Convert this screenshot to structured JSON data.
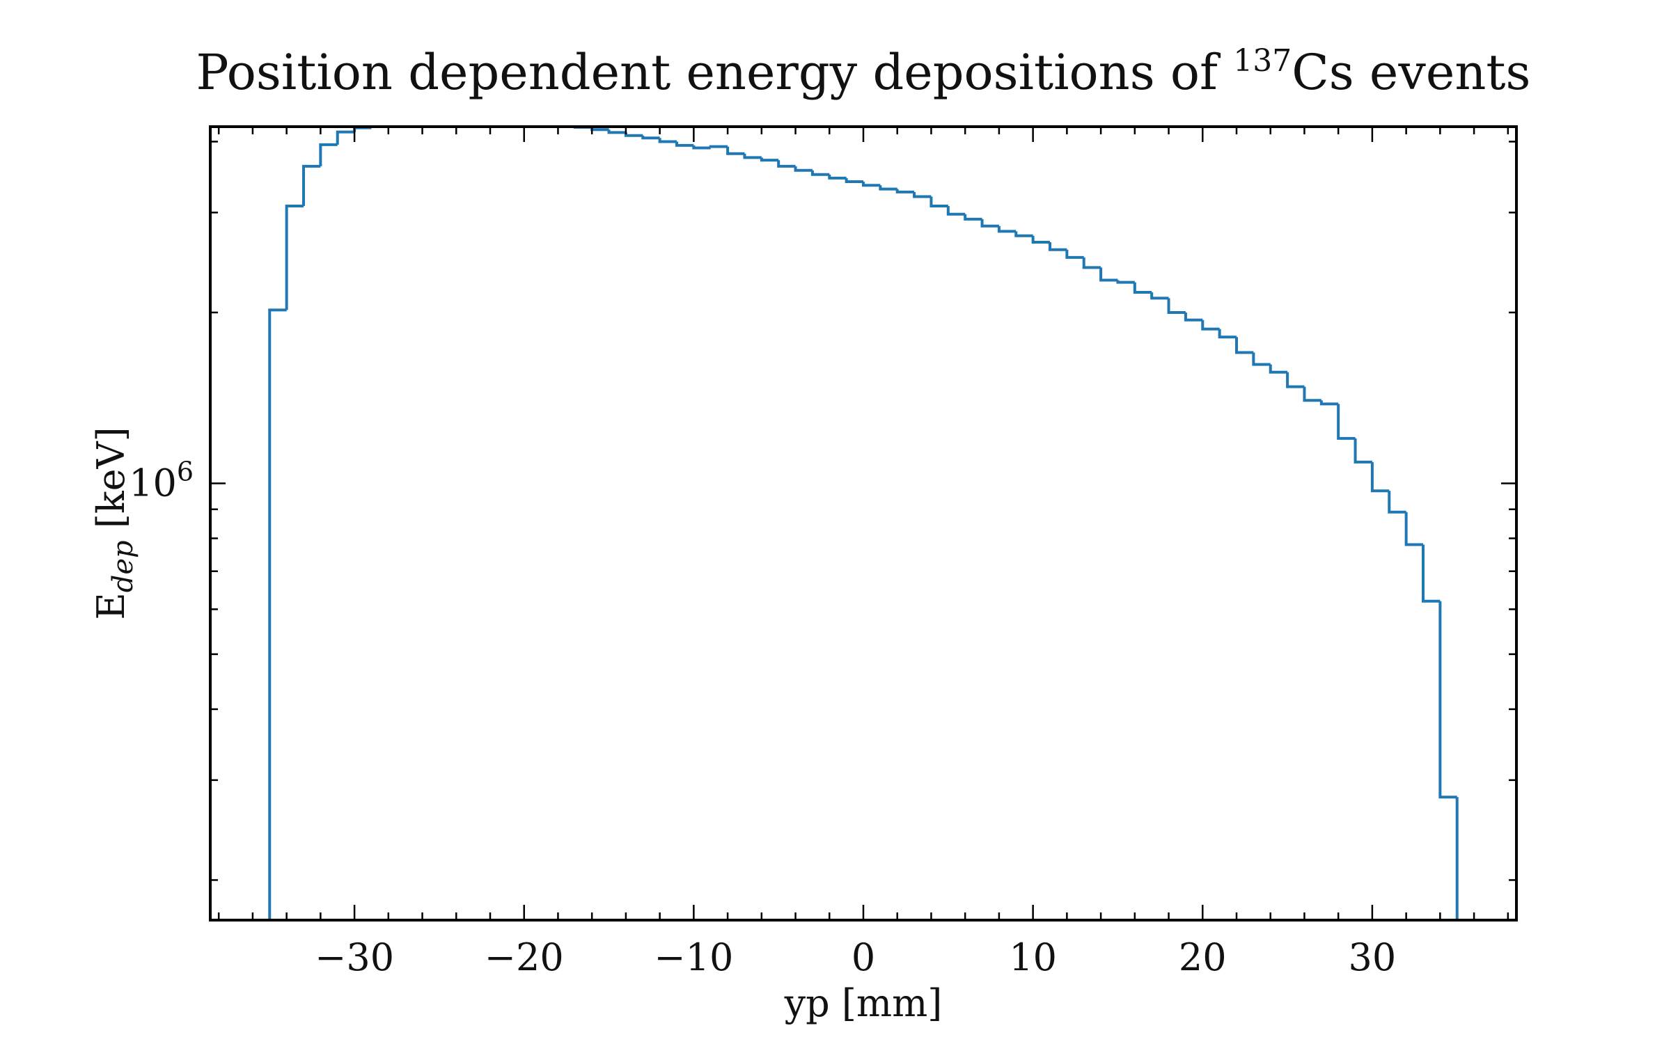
{
  "chart_data": {
    "type": "histogram",
    "title": "Position dependent energy depositions of ",
    "title_superscript": "137",
    "title_suffix": "Cs events",
    "xlabel": "yp [mm]",
    "ylabel_main": "E",
    "ylabel_sub": "dep",
    "ylabel_unit": " [keV]",
    "xlim": [
      -38.5,
      38.5
    ],
    "ylim": [
      170000,
      4250000
    ],
    "yscale": "log",
    "grid": false,
    "legend": "none",
    "color": "#1f77b4",
    "x_ticks": [
      -30,
      -20,
      -10,
      0,
      10,
      20,
      30
    ],
    "x_tick_labels": [
      "−30",
      "−20",
      "−10",
      "0",
      "10",
      "20",
      "30"
    ],
    "y_major_ticks": [
      1000000
    ],
    "y_tick_labels": [
      {
        "base": "10",
        "exp": "6"
      }
    ],
    "y_minor_ticks": [
      200000,
      300000,
      400000,
      500000,
      600000,
      700000,
      800000,
      900000,
      2000000,
      3000000,
      4000000
    ],
    "bin_edges": [
      -35,
      -34,
      -33,
      -32,
      -31,
      -30,
      -29,
      -28,
      -27,
      -26,
      -25,
      -24,
      -23,
      -22,
      -21,
      -20,
      -19,
      -18,
      -17,
      -16,
      -15,
      -14,
      -13,
      -12,
      -11,
      -10,
      -9,
      -8,
      -7,
      -6,
      -5,
      -4,
      -3,
      -2,
      -1,
      0,
      1,
      2,
      3,
      4,
      5,
      6,
      7,
      8,
      9,
      10,
      11,
      12,
      13,
      14,
      15,
      16,
      17,
      18,
      19,
      20,
      21,
      22,
      23,
      24,
      25,
      26,
      27,
      28,
      29,
      30,
      31,
      32,
      33,
      34,
      35
    ],
    "values": [
      2020000,
      3080000,
      3620000,
      3950000,
      4160000,
      4230000,
      4280000,
      4350000,
      4380000,
      4380000,
      4400000,
      4420000,
      4440000,
      4430000,
      4370000,
      4340000,
      4320000,
      4300000,
      4240000,
      4200000,
      4150000,
      4100000,
      4060000,
      4000000,
      3940000,
      3900000,
      3920000,
      3810000,
      3750000,
      3710000,
      3620000,
      3560000,
      3500000,
      3450000,
      3400000,
      3350000,
      3300000,
      3260000,
      3200000,
      3080000,
      2980000,
      2920000,
      2840000,
      2780000,
      2730000,
      2660000,
      2580000,
      2500000,
      2400000,
      2280000,
      2260000,
      2170000,
      2120000,
      2000000,
      1940000,
      1870000,
      1810000,
      1700000,
      1620000,
      1570000,
      1480000,
      1400000,
      1380000,
      1200000,
      1090000,
      970000,
      890000,
      780000,
      620000,
      280000
    ]
  }
}
